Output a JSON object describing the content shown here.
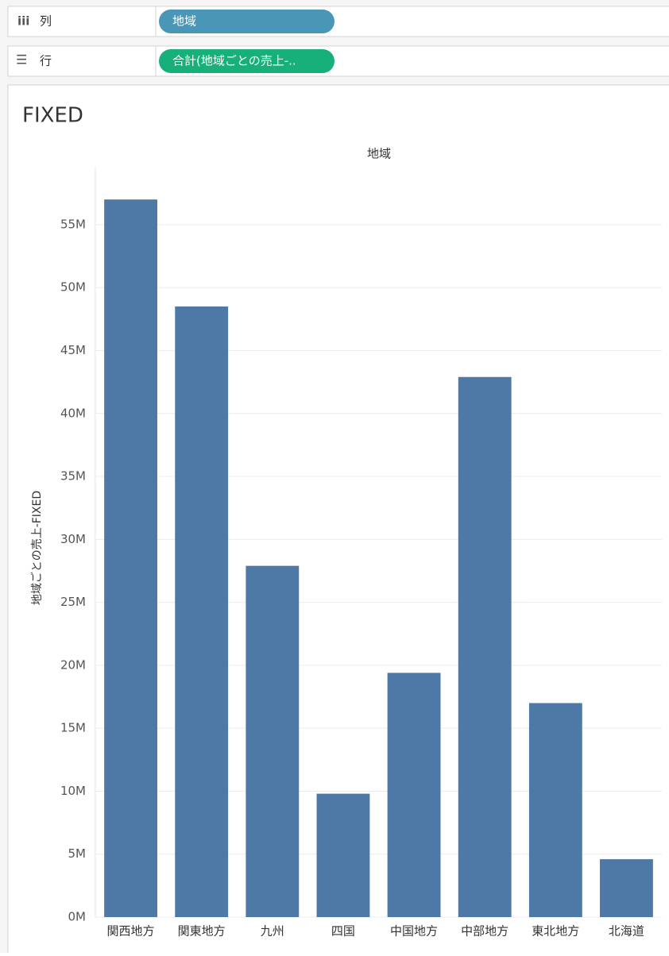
{
  "shelves": {
    "columns": {
      "label": "列",
      "pill": "地域"
    },
    "rows": {
      "label": "行",
      "pill": "合計(地域ごとの売上-.."
    }
  },
  "chart_data": {
    "type": "bar",
    "title": "FIXED",
    "header": "地域",
    "y_label": "地域ごとの売上-FIXED",
    "categories": [
      "関西地方",
      "関東地方",
      "九州",
      "四国",
      "中国地方",
      "中部地方",
      "東北地方",
      "北海道"
    ],
    "values": [
      57000000,
      48500000,
      27900000,
      9800000,
      19400000,
      42900000,
      17000000,
      4600000
    ],
    "color": "#4e79a7",
    "ylim": [
      0,
      59600000
    ],
    "yticks": [
      {
        "value": 0,
        "label": "0M"
      },
      {
        "value": 5000000,
        "label": "5M"
      },
      {
        "value": 10000000,
        "label": "10M"
      },
      {
        "value": 15000000,
        "label": "15M"
      },
      {
        "value": 20000000,
        "label": "20M"
      },
      {
        "value": 25000000,
        "label": "25M"
      },
      {
        "value": 30000000,
        "label": "30M"
      },
      {
        "value": 35000000,
        "label": "35M"
      },
      {
        "value": 40000000,
        "label": "40M"
      },
      {
        "value": 45000000,
        "label": "45M"
      },
      {
        "value": 50000000,
        "label": "50M"
      },
      {
        "value": 55000000,
        "label": "55M"
      }
    ],
    "grid": true
  }
}
